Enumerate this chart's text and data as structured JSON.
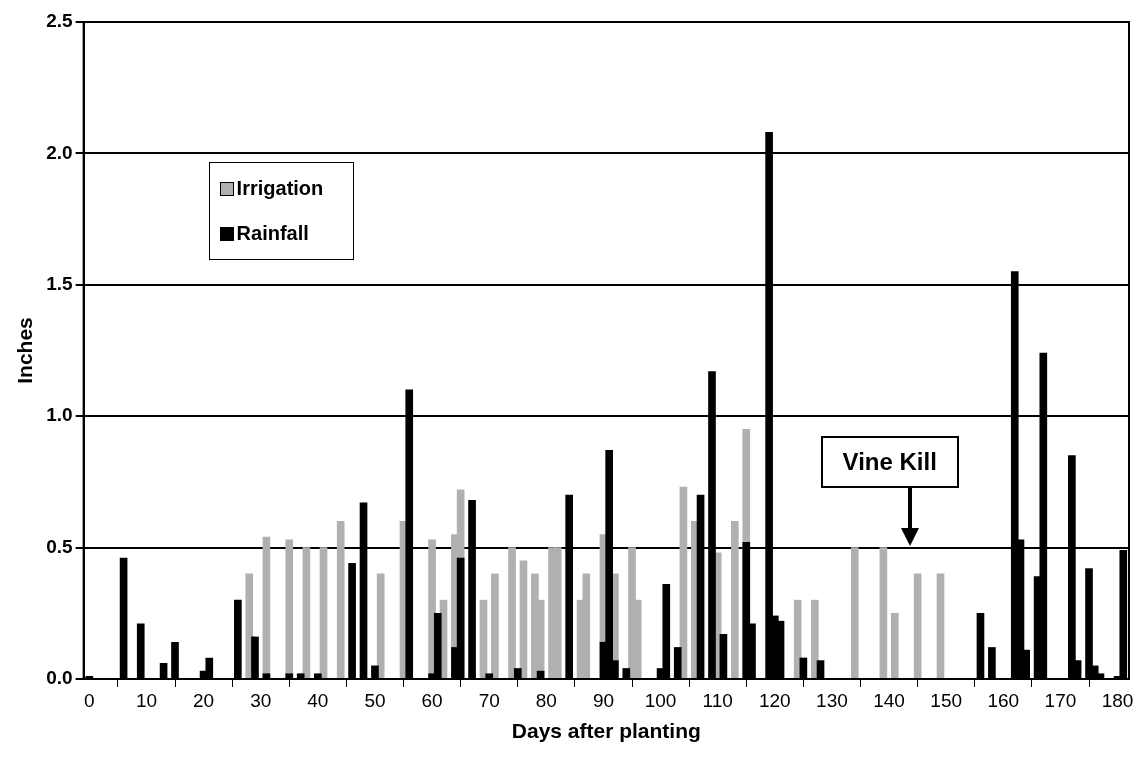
{
  "chart_data": {
    "type": "bar",
    "xlabel": "Days after planting",
    "ylabel": "Inches",
    "xlim": [
      -1,
      182
    ],
    "xticks": [
      0,
      10,
      20,
      30,
      40,
      50,
      60,
      70,
      80,
      90,
      100,
      110,
      120,
      130,
      140,
      150,
      160,
      170,
      180
    ],
    "ylim": [
      0,
      2.5
    ],
    "yticks": [
      {
        "value": 0,
        "label": "0.0"
      },
      {
        "value": 0.5,
        "label": "0.5"
      },
      {
        "value": 1,
        "label": "1.0"
      },
      {
        "value": 1.5,
        "label": "1.5"
      },
      {
        "value": 2,
        "label": "2.0"
      },
      {
        "value": 2.5,
        "label": "2.5"
      }
    ],
    "grid": "y",
    "legend": "top left",
    "series": [
      {
        "name": "Irrigation",
        "color": "#b0b0b0",
        "x": [
          28,
          31,
          35,
          38,
          41,
          44,
          51,
          55,
          60,
          62,
          64,
          65,
          69,
          71,
          74,
          76,
          78,
          79,
          81,
          82,
          86,
          87,
          90,
          92,
          95,
          96,
          104,
          106,
          110,
          113,
          115,
          124,
          127,
          134,
          139,
          141,
          145,
          149
        ],
        "values": [
          0.4,
          0.54,
          0.53,
          0.5,
          0.5,
          0.6,
          0.4,
          0.6,
          0.53,
          0.3,
          0.55,
          0.72,
          0.3,
          0.4,
          0.5,
          0.45,
          0.4,
          0.3,
          0.5,
          0.5,
          0.3,
          0.4,
          0.55,
          0.4,
          0.5,
          0.3,
          0.73,
          0.6,
          0.48,
          0.6,
          0.95,
          0.3,
          0.3,
          0.5,
          0.5,
          0.25,
          0.4,
          0.4
        ]
      },
      {
        "name": "Rainfall",
        "color": "#000000",
        "x": [
          0,
          6,
          9,
          13,
          15,
          20,
          21,
          26,
          29,
          31,
          35,
          37,
          40,
          46,
          48,
          50,
          56,
          60,
          61,
          64,
          65,
          67,
          70,
          75,
          79,
          84,
          90,
          91,
          92,
          94,
          100,
          101,
          103,
          107,
          109,
          111,
          115,
          116,
          119,
          120,
          121,
          125,
          128,
          156,
          158,
          162,
          163,
          164,
          166,
          167,
          172,
          173,
          175,
          176,
          177,
          180,
          181
        ],
        "values": [
          0.01,
          0.46,
          0.21,
          0.06,
          0.14,
          0.03,
          0.08,
          0.3,
          0.16,
          0.02,
          0.02,
          0.02,
          0.02,
          0.44,
          0.67,
          0.05,
          1.1,
          0.02,
          0.25,
          0.12,
          0.46,
          0.68,
          0.02,
          0.04,
          0.03,
          0.7,
          0.14,
          0.87,
          0.07,
          0.04,
          0.04,
          0.36,
          0.12,
          0.7,
          1.17,
          0.17,
          0.52,
          0.21,
          2.08,
          0.24,
          0.22,
          0.08,
          0.07,
          0.25,
          0.12,
          1.55,
          0.53,
          0.11,
          0.39,
          1.24,
          0.85,
          0.07,
          0.42,
          0.05,
          0.02,
          0.01,
          0.49
        ]
      }
    ],
    "annotations": [
      "Vine Kill"
    ]
  }
}
